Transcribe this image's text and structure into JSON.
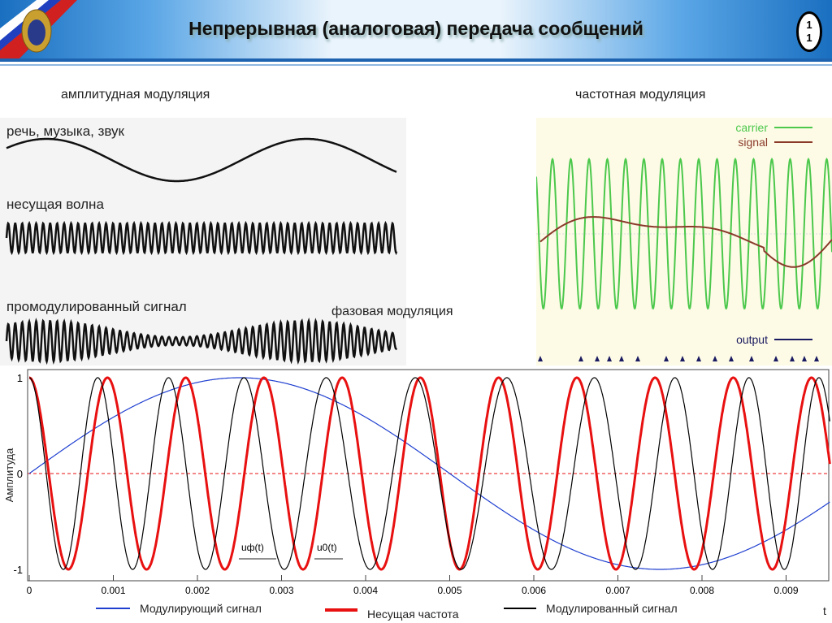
{
  "header": {
    "title": "Непрерывная (аналоговая) передача сообщений",
    "page_number_top": "1",
    "page_number_bottom": "1"
  },
  "labels": {
    "am": "амплитудная модуляция",
    "fm": "частотная модуляция",
    "pm": "фазовая модуляция"
  },
  "am_panel": {
    "message": "речь, музыка, звук",
    "carrier": "несущая волна",
    "modulated": "промодулированный сигнал"
  },
  "fm_panel": {
    "legend": [
      {
        "label": "carrier",
        "color": "#4cc84c"
      },
      {
        "label": "signal",
        "color": "#8b3a2a"
      },
      {
        "label": "output",
        "color": "#1a1a60"
      }
    ],
    "background": "#fdfbe6"
  },
  "chart_data": {
    "type": "line",
    "xlabel": "t",
    "ylabel": "Амплитуда",
    "xlim": [
      0,
      0.0105
    ],
    "ylim": [
      -1,
      1
    ],
    "xticks": [
      "0",
      "0.001",
      "0.002",
      "0.003",
      "0.004",
      "0.005",
      "0.006",
      "0.007",
      "0.008",
      "0.009"
    ],
    "yticks": [
      "1",
      "0",
      "-1"
    ],
    "annotations": [
      "uф(t)",
      "u0(t)"
    ],
    "legend_placement": "bottom",
    "series": [
      {
        "name": "Модулирующий сигнал",
        "color": "#1f3fd0",
        "function": "sin(2π·100·t)"
      },
      {
        "name": "Несущая частота",
        "color": "#e81010",
        "function": "cos(2π·1075·t)"
      },
      {
        "name": "Модулированный сигнал",
        "color": "#000000",
        "function": "cos(2π·1075·t + 1.6·sin(2π·100·t))"
      }
    ]
  }
}
